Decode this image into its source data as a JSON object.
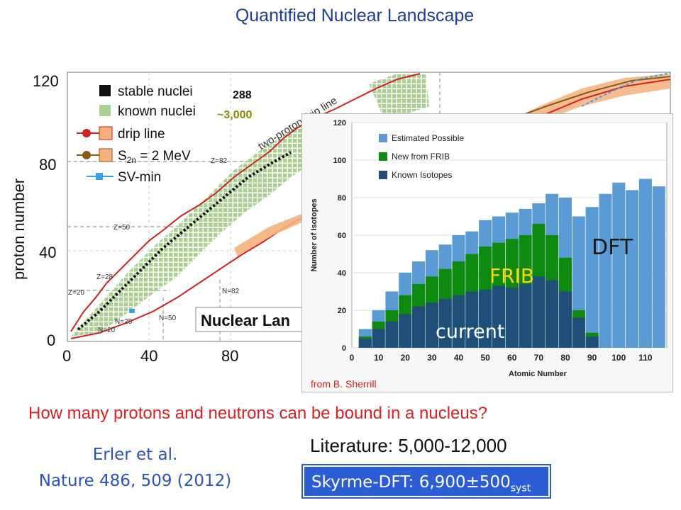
{
  "title": "Quantified Nuclear Landscape",
  "main_plot": {
    "ylabel": "proton number",
    "yticks": [
      "0",
      "40",
      "80",
      "120"
    ],
    "xticks": [
      "0",
      "40",
      "80"
    ],
    "legend": {
      "stable": "stable nuclei",
      "known": "known nuclei",
      "drip": "drip line",
      "s2n_s": "S",
      "s2n_sub": "2n",
      "s2n_rest": " = 2 MeV",
      "svmin": "SV-min",
      "stable_count": "288",
      "known_count": "~3,000"
    },
    "magic_labels": {
      "z82": "Z=82",
      "z50": "Z=50",
      "z28": "Z=28",
      "z20": "Z=20",
      "n82": "N=82",
      "n50": "N=50",
      "n28": "N=28",
      "n20": "N=20"
    },
    "two_proton_label": "two-proton drip line",
    "banner": "Nuclear Lan",
    "colors": {
      "drip": "#d42020",
      "known": "#a8d090",
      "stable": "#111111",
      "s2n": "#8b5a14",
      "band": "#f4b07a",
      "svmin": "#3aa0e8"
    }
  },
  "inset": {
    "credit": "from B. Sherrill",
    "overlay_dft": "DFT",
    "overlay_frib": "FRIB",
    "overlay_current": "current",
    "colors": {
      "possible": "#5b9bd5",
      "frib": "#0e8a0e",
      "known": "#1f4e79"
    }
  },
  "chart_data": {
    "type": "area",
    "xlabel": "Atomic Number",
    "ylabel": "Number of Isotopes",
    "xlim": [
      0,
      118
    ],
    "ylim": [
      0,
      120
    ],
    "xticks": [
      0,
      10,
      20,
      30,
      40,
      50,
      60,
      70,
      80,
      90,
      100,
      110
    ],
    "yticks": [
      0,
      20,
      40,
      60,
      80,
      100,
      120
    ],
    "legend_position": "top-left",
    "x": [
      5,
      10,
      15,
      20,
      25,
      30,
      35,
      40,
      45,
      50,
      55,
      60,
      65,
      70,
      75,
      80,
      85,
      90,
      95,
      100,
      105,
      110,
      115
    ],
    "series": [
      {
        "name": "Estimated Possible",
        "values": [
          10,
          20,
          30,
          40,
          46,
          52,
          55,
          60,
          62,
          68,
          70,
          72,
          74,
          77,
          82,
          80,
          70,
          75,
          82,
          88,
          84,
          90,
          86
        ]
      },
      {
        "name": "New from FRIB",
        "values": [
          6,
          14,
          20,
          28,
          34,
          38,
          42,
          46,
          50,
          54,
          56,
          58,
          60,
          66,
          60,
          48,
          20,
          8,
          0,
          0,
          0,
          0,
          0
        ]
      },
      {
        "name": "Known Isotopes",
        "values": [
          5,
          10,
          14,
          18,
          22,
          24,
          26,
          28,
          30,
          31,
          33,
          32,
          34,
          38,
          36,
          30,
          16,
          6,
          0,
          0,
          0,
          0,
          0
        ]
      }
    ]
  },
  "question": "How many protons and neutrons can be bound in a nucleus?",
  "citation": {
    "authors": "Erler et al.",
    "journal": "Nature 486, 509 (2012)"
  },
  "literature": "Literature: 5,000-12,000",
  "result": {
    "main": "Skyrme-DFT: 6,900±500",
    "sub": "syst"
  }
}
